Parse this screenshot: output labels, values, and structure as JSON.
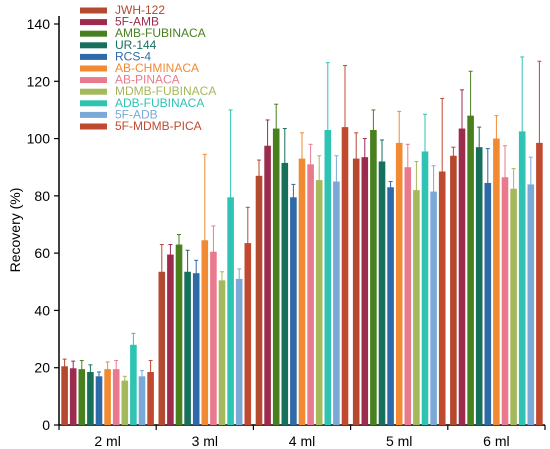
{
  "chart_data": {
    "type": "bar",
    "title": "",
    "xlabel": "",
    "ylabel": "Recovery (%)",
    "ylim": [
      0,
      140
    ],
    "yticks": [
      0,
      20,
      40,
      60,
      80,
      100,
      120,
      140
    ],
    "categories": [
      "2 ml",
      "3 ml",
      "4 ml",
      "5 ml",
      "6 ml"
    ],
    "grid": false,
    "legend_position": "top-left",
    "series": [
      {
        "name": "JWH-122",
        "color": "#b5492f",
        "values": [
          20.5,
          53.5,
          87,
          93,
          94
        ],
        "errors": [
          2.5,
          9.5,
          5.5,
          9,
          3
        ]
      },
      {
        "name": "5F-AMB",
        "color": "#9c2b4e",
        "values": [
          19.8,
          59.5,
          97.5,
          93.5,
          103.5
        ],
        "errors": [
          2.5,
          3.5,
          9,
          6.5,
          13.5
        ]
      },
      {
        "name": "AMB-FUBINACA",
        "color": "#48801f",
        "values": [
          19.5,
          63,
          103.5,
          103,
          108
        ],
        "errors": [
          3,
          3.5,
          8.5,
          7,
          15.5
        ]
      },
      {
        "name": "UR-144",
        "color": "#17705c",
        "values": [
          18.5,
          53.5,
          91.5,
          92,
          97
        ],
        "errors": [
          2.5,
          7.5,
          12,
          7.5,
          7
        ]
      },
      {
        "name": "RCS-4",
        "color": "#2e6aa8",
        "values": [
          17,
          53,
          79.5,
          83,
          84.5
        ],
        "errors": [
          1.5,
          4.5,
          4.5,
          2,
          12
        ]
      },
      {
        "name": "AB-CHMINACA",
        "color": "#f18a33",
        "values": [
          19.5,
          64.5,
          93,
          98.5,
          100
        ],
        "errors": [
          2.5,
          30,
          9,
          11,
          8
        ]
      },
      {
        "name": "AB-PINACA",
        "color": "#e97a8e",
        "values": [
          19.5,
          60.5,
          91,
          90,
          86.5
        ],
        "errors": [
          3,
          9,
          7,
          8,
          11
        ]
      },
      {
        "name": "MDMB-FUBINACA",
        "color": "#a4b85c",
        "values": [
          15.5,
          50.5,
          85.5,
          82,
          82.5
        ],
        "errors": [
          1.5,
          3,
          8.5,
          10,
          7
        ]
      },
      {
        "name": "ADB-FUBINACA",
        "color": "#2fc3b4",
        "values": [
          28,
          79.5,
          103,
          95.5,
          102.5
        ],
        "errors": [
          4,
          30.5,
          23.5,
          13,
          26
        ]
      },
      {
        "name": "5F-ADB",
        "color": "#7aa9d8",
        "values": [
          17,
          51,
          85,
          81.5,
          84
        ],
        "errors": [
          2,
          3.5,
          9,
          9,
          9.5
        ]
      },
      {
        "name": "5F-MDMB-PICA",
        "color": "#c04a30",
        "values": [
          18.5,
          63.5,
          104,
          88.5,
          98.5
        ],
        "errors": [
          4,
          12.5,
          21.5,
          25.5,
          28.5
        ]
      }
    ]
  }
}
